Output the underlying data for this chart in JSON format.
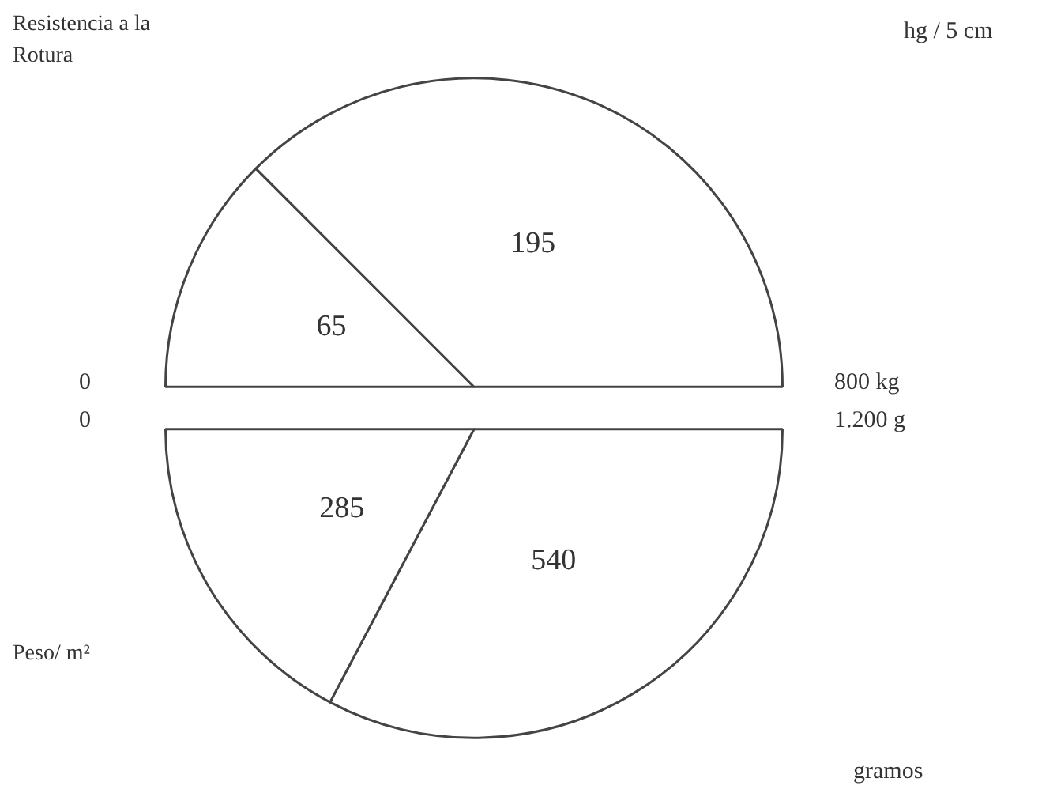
{
  "chart_data": [
    {
      "type": "pie",
      "title": "Resistencia a la Rotura",
      "categories": [
        null,
        null
      ],
      "values": [
        65,
        195
      ],
      "colors": [
        "#ffffff",
        "#ffffff"
      ],
      "data_labels": true,
      "legend": false,
      "annotations": [
        "hg / 5 cm",
        "0",
        "800 kg"
      ]
    },
    {
      "type": "pie",
      "title": "Peso/ m²",
      "categories": [
        null,
        null
      ],
      "values": [
        540,
        285
      ],
      "colors": [
        "#ffffff",
        "#ffffff"
      ],
      "data_labels": true,
      "legend": false,
      "annotations": [
        "gramos",
        "0",
        "1.200 g"
      ]
    }
  ]
}
